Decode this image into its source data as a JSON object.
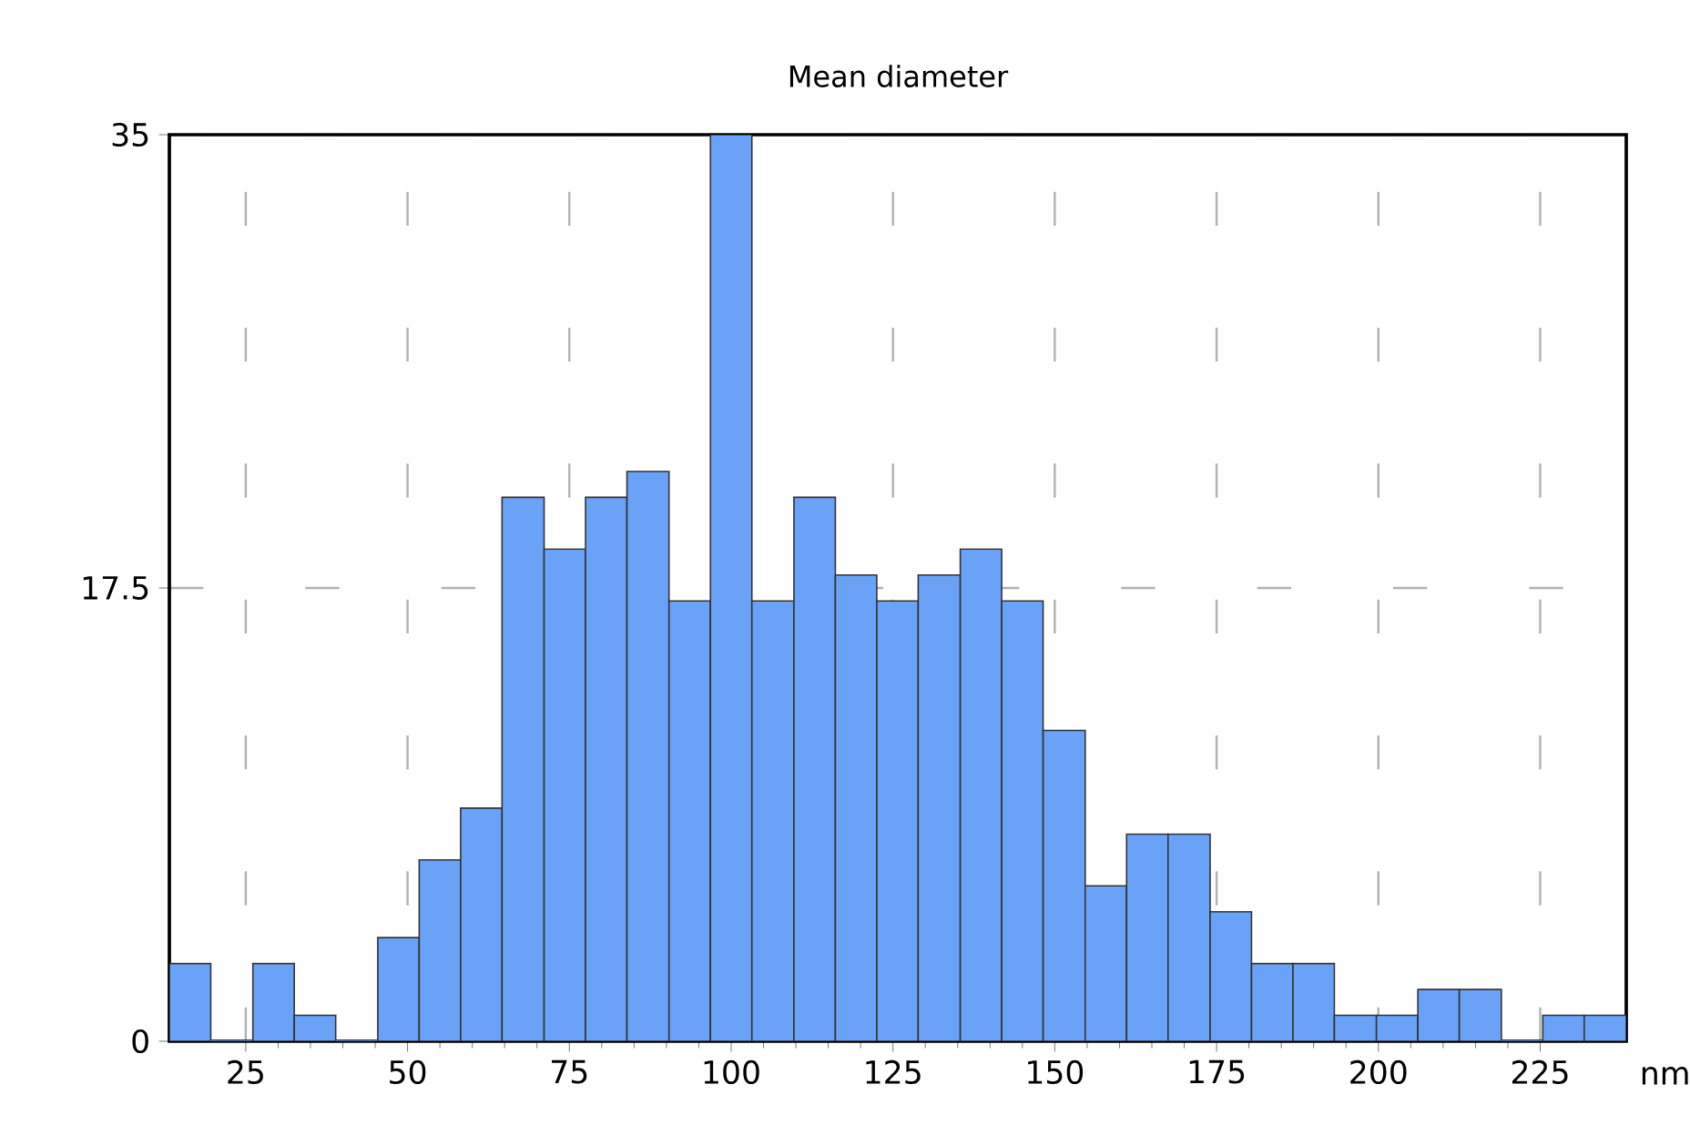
{
  "chart_data": {
    "type": "histogram",
    "title": "Mean diameter",
    "xlabel": "nm",
    "bins": [
      13.2,
      19.6,
      26.1,
      32.5,
      38.9,
      45.4,
      51.8,
      58.2,
      64.6,
      71.1,
      77.5,
      83.9,
      90.4,
      96.8,
      103.2,
      109.7,
      116.1,
      122.5,
      128.9,
      135.4,
      141.8,
      148.2,
      154.7,
      161.1,
      167.5,
      174.0,
      180.4,
      186.8,
      193.2,
      199.7,
      206.1,
      212.5,
      219.0,
      225.4,
      231.8,
      238.3
    ],
    "values": [
      3,
      0,
      3,
      1,
      0,
      4,
      7,
      9,
      21,
      19,
      21,
      22,
      17,
      35,
      17,
      21,
      18,
      17,
      18,
      19,
      17,
      12,
      6,
      8,
      8,
      5,
      3,
      3,
      1,
      1,
      2,
      2,
      0,
      1,
      1
    ],
    "color": "#6aa2f8",
    "xlim": [
      13.2,
      238.3
    ],
    "ylim": [
      0,
      35
    ],
    "xticks": [
      25,
      50,
      75,
      100,
      125,
      150,
      175,
      200,
      225
    ],
    "yticks": [
      0,
      17.5,
      35
    ],
    "grid": true
  }
}
